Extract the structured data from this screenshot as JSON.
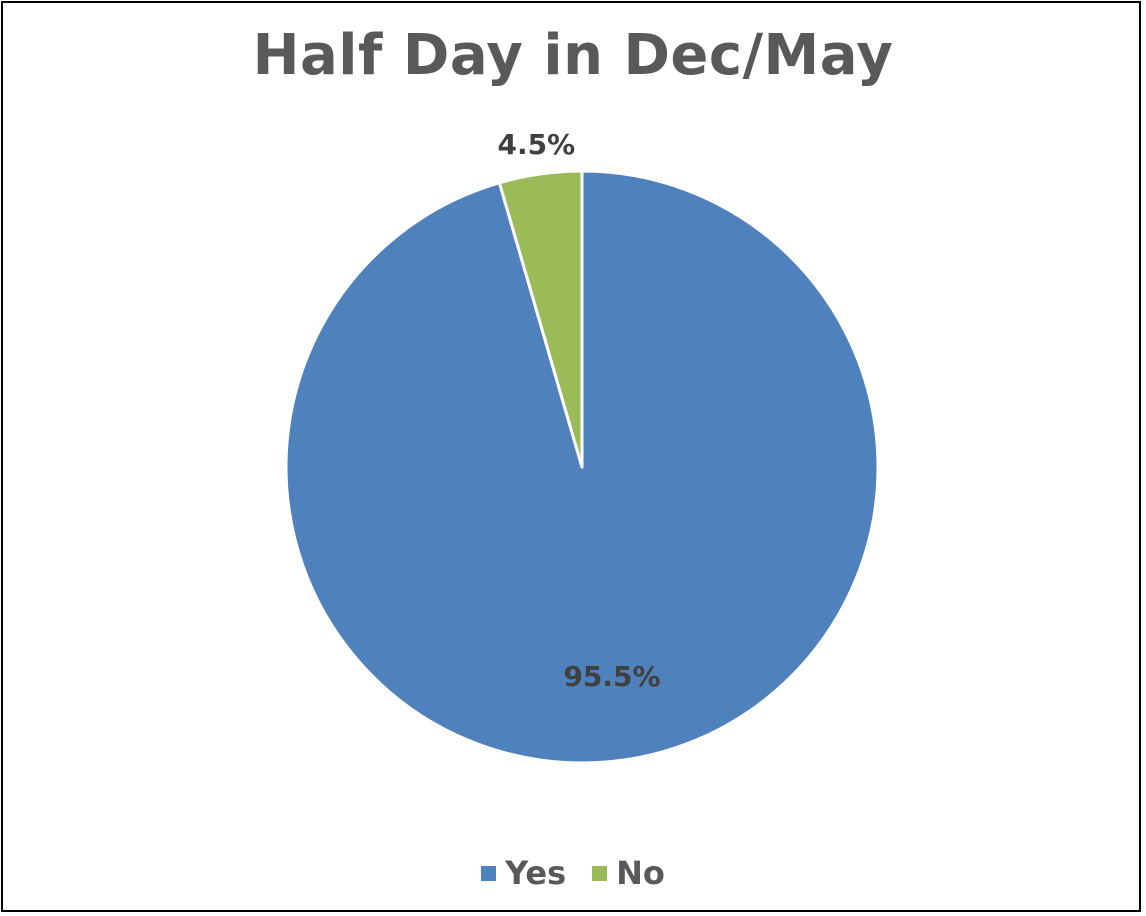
{
  "chart_data": {
    "type": "pie",
    "title": "Half Day in Dec/May",
    "categories": [
      "Yes",
      "No"
    ],
    "values": [
      95.5,
      4.5
    ],
    "value_labels": [
      "95.5%",
      "4.5%"
    ],
    "colors": [
      "#4F81BD",
      "#9BBB59"
    ],
    "legend": "bottom",
    "legend_entries": [
      "Yes",
      "No"
    ]
  }
}
